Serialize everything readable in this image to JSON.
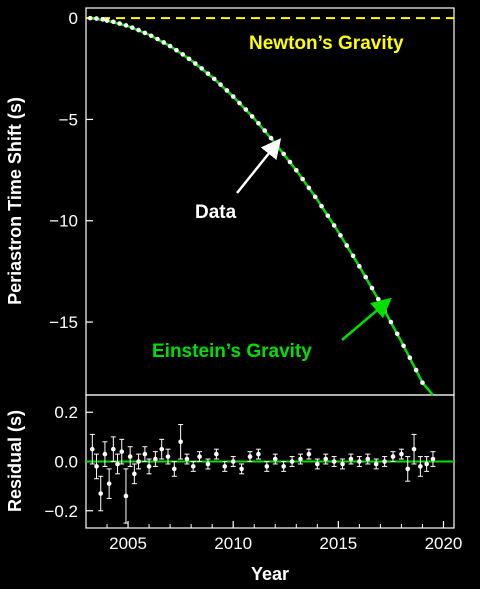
{
  "chart_data": [
    {
      "type": "scatter",
      "panel": "top",
      "xlabel": "",
      "ylabel": "Periastron Time Shift (s)",
      "xlim": [
        2003,
        2020.5
      ],
      "ylim": [
        -18.6,
        0.5
      ],
      "yticks": [
        0,
        -5,
        -10,
        -15
      ],
      "ytick_labels": [
        "0",
        "−5",
        "−10",
        "−15"
      ],
      "colors": {
        "data": "#ffffff",
        "newton": "#ffff00",
        "einstein": "#00e000"
      },
      "series": [
        {
          "name": "Data",
          "x": [
            2003.2,
            2003.5,
            2003.8,
            2004.0,
            2004.3,
            2004.6,
            2004.9,
            2005.2,
            2005.5,
            2005.8,
            2006.1,
            2006.4,
            2006.7,
            2007.0,
            2007.3,
            2007.6,
            2007.9,
            2008.2,
            2008.5,
            2008.8,
            2009.1,
            2009.4,
            2009.7,
            2010.0,
            2010.3,
            2010.6,
            2010.9,
            2011.2,
            2011.5,
            2011.8,
            2012.1,
            2012.4,
            2012.7,
            2013.0,
            2013.3,
            2013.6,
            2013.9,
            2014.2,
            2014.5,
            2014.8,
            2015.1,
            2015.4,
            2015.7,
            2016.0,
            2016.3,
            2016.6,
            2016.9,
            2017.2,
            2017.5,
            2017.8,
            2018.1,
            2018.4,
            2018.7,
            2019.0,
            2019.3
          ],
          "y": [
            0.0,
            -0.02,
            -0.06,
            -0.12,
            -0.18,
            -0.27,
            -0.36,
            -0.47,
            -0.59,
            -0.73,
            -0.87,
            -1.03,
            -1.2,
            -1.38,
            -1.58,
            -1.79,
            -2.01,
            -2.24,
            -2.48,
            -2.74,
            -3.0,
            -3.28,
            -3.57,
            -3.87,
            -4.19,
            -4.51,
            -4.85,
            -5.19,
            -5.55,
            -5.92,
            -6.3,
            -6.7,
            -7.1,
            -7.51,
            -7.94,
            -8.38,
            -8.82,
            -9.28,
            -9.75,
            -10.23,
            -10.72,
            -11.22,
            -11.73,
            -12.25,
            -12.78,
            -13.32,
            -13.87,
            -14.43,
            -15.0,
            -15.58,
            -16.17,
            -16.76,
            -17.37,
            -17.99,
            -18.62
          ]
        },
        {
          "name": "Einstein's Gravity",
          "x": [
            2003.2,
            2004.0,
            2005.0,
            2006.0,
            2007.0,
            2008.0,
            2009.0,
            2010.0,
            2011.0,
            2012.0,
            2013.0,
            2014.0,
            2015.0,
            2016.0,
            2017.0,
            2018.0,
            2019.0,
            2019.5
          ],
          "y": [
            0.0,
            -0.12,
            -0.4,
            -0.82,
            -1.38,
            -2.08,
            -2.91,
            -3.87,
            -4.96,
            -6.18,
            -7.51,
            -8.96,
            -10.55,
            -12.25,
            -14.06,
            -15.97,
            -17.99,
            -19.05
          ]
        },
        {
          "name": "Newton's Gravity",
          "x": [
            2003.0,
            2020.5
          ],
          "y": [
            0,
            0
          ]
        }
      ],
      "annotations": [
        "Newton’s Gravity",
        "Data",
        "Einstein’s Gravity"
      ]
    },
    {
      "type": "scatter",
      "panel": "bottom",
      "xlabel": "Year",
      "ylabel": "Residual (s)",
      "xlim": [
        2003,
        2020.5
      ],
      "ylim": [
        -0.27,
        0.27
      ],
      "xticks": [
        2005,
        2010,
        2015,
        2020
      ],
      "xtick_labels": [
        "2005",
        "2010",
        "2015",
        "2020"
      ],
      "yticks": [
        0.2,
        0.0,
        -0.2
      ],
      "ytick_labels": [
        "0.2",
        "0.0",
        "−0.2"
      ],
      "series": [
        {
          "name": "Residuals",
          "x": [
            2003.3,
            2003.5,
            2003.7,
            2003.9,
            2004.1,
            2004.3,
            2004.5,
            2004.7,
            2004.9,
            2005.1,
            2005.3,
            2005.5,
            2005.8,
            2006.0,
            2006.3,
            2006.6,
            2006.9,
            2007.2,
            2007.5,
            2007.8,
            2008.1,
            2008.4,
            2008.8,
            2009.2,
            2009.6,
            2010.0,
            2010.4,
            2010.8,
            2011.2,
            2011.6,
            2012.0,
            2012.4,
            2012.8,
            2013.2,
            2013.6,
            2014.0,
            2014.4,
            2014.8,
            2015.2,
            2015.6,
            2016.0,
            2016.4,
            2016.8,
            2017.2,
            2017.6,
            2018.0,
            2018.3,
            2018.6,
            2018.9,
            2019.2,
            2019.5
          ],
          "y": [
            0.05,
            -0.02,
            -0.13,
            0.03,
            -0.09,
            0.05,
            -0.01,
            0.04,
            -0.14,
            0.02,
            -0.05,
            0.0,
            0.03,
            -0.02,
            0.01,
            0.05,
            0.02,
            -0.03,
            0.08,
            0.01,
            -0.02,
            0.02,
            -0.01,
            0.03,
            -0.02,
            0.0,
            -0.03,
            0.02,
            0.03,
            -0.02,
            0.01,
            -0.02,
            0.0,
            0.01,
            0.03,
            -0.01,
            0.01,
            0.0,
            -0.01,
            0.01,
            0.0,
            0.01,
            -0.01,
            0.0,
            0.02,
            0.03,
            -0.03,
            0.05,
            -0.02,
            -0.01,
            0.01
          ],
          "yerr": [
            0.06,
            0.05,
            0.07,
            0.05,
            0.06,
            0.05,
            0.04,
            0.05,
            0.11,
            0.04,
            0.04,
            0.03,
            0.03,
            0.03,
            0.03,
            0.04,
            0.03,
            0.03,
            0.07,
            0.02,
            0.02,
            0.02,
            0.02,
            0.02,
            0.02,
            0.02,
            0.02,
            0.02,
            0.02,
            0.02,
            0.02,
            0.02,
            0.02,
            0.02,
            0.02,
            0.02,
            0.02,
            0.02,
            0.02,
            0.02,
            0.02,
            0.02,
            0.02,
            0.02,
            0.02,
            0.02,
            0.05,
            0.06,
            0.04,
            0.03,
            0.03
          ]
        },
        {
          "name": "zero-line",
          "x": [
            2003.0,
            2020.5
          ],
          "y": [
            0,
            0
          ]
        }
      ]
    }
  ]
}
